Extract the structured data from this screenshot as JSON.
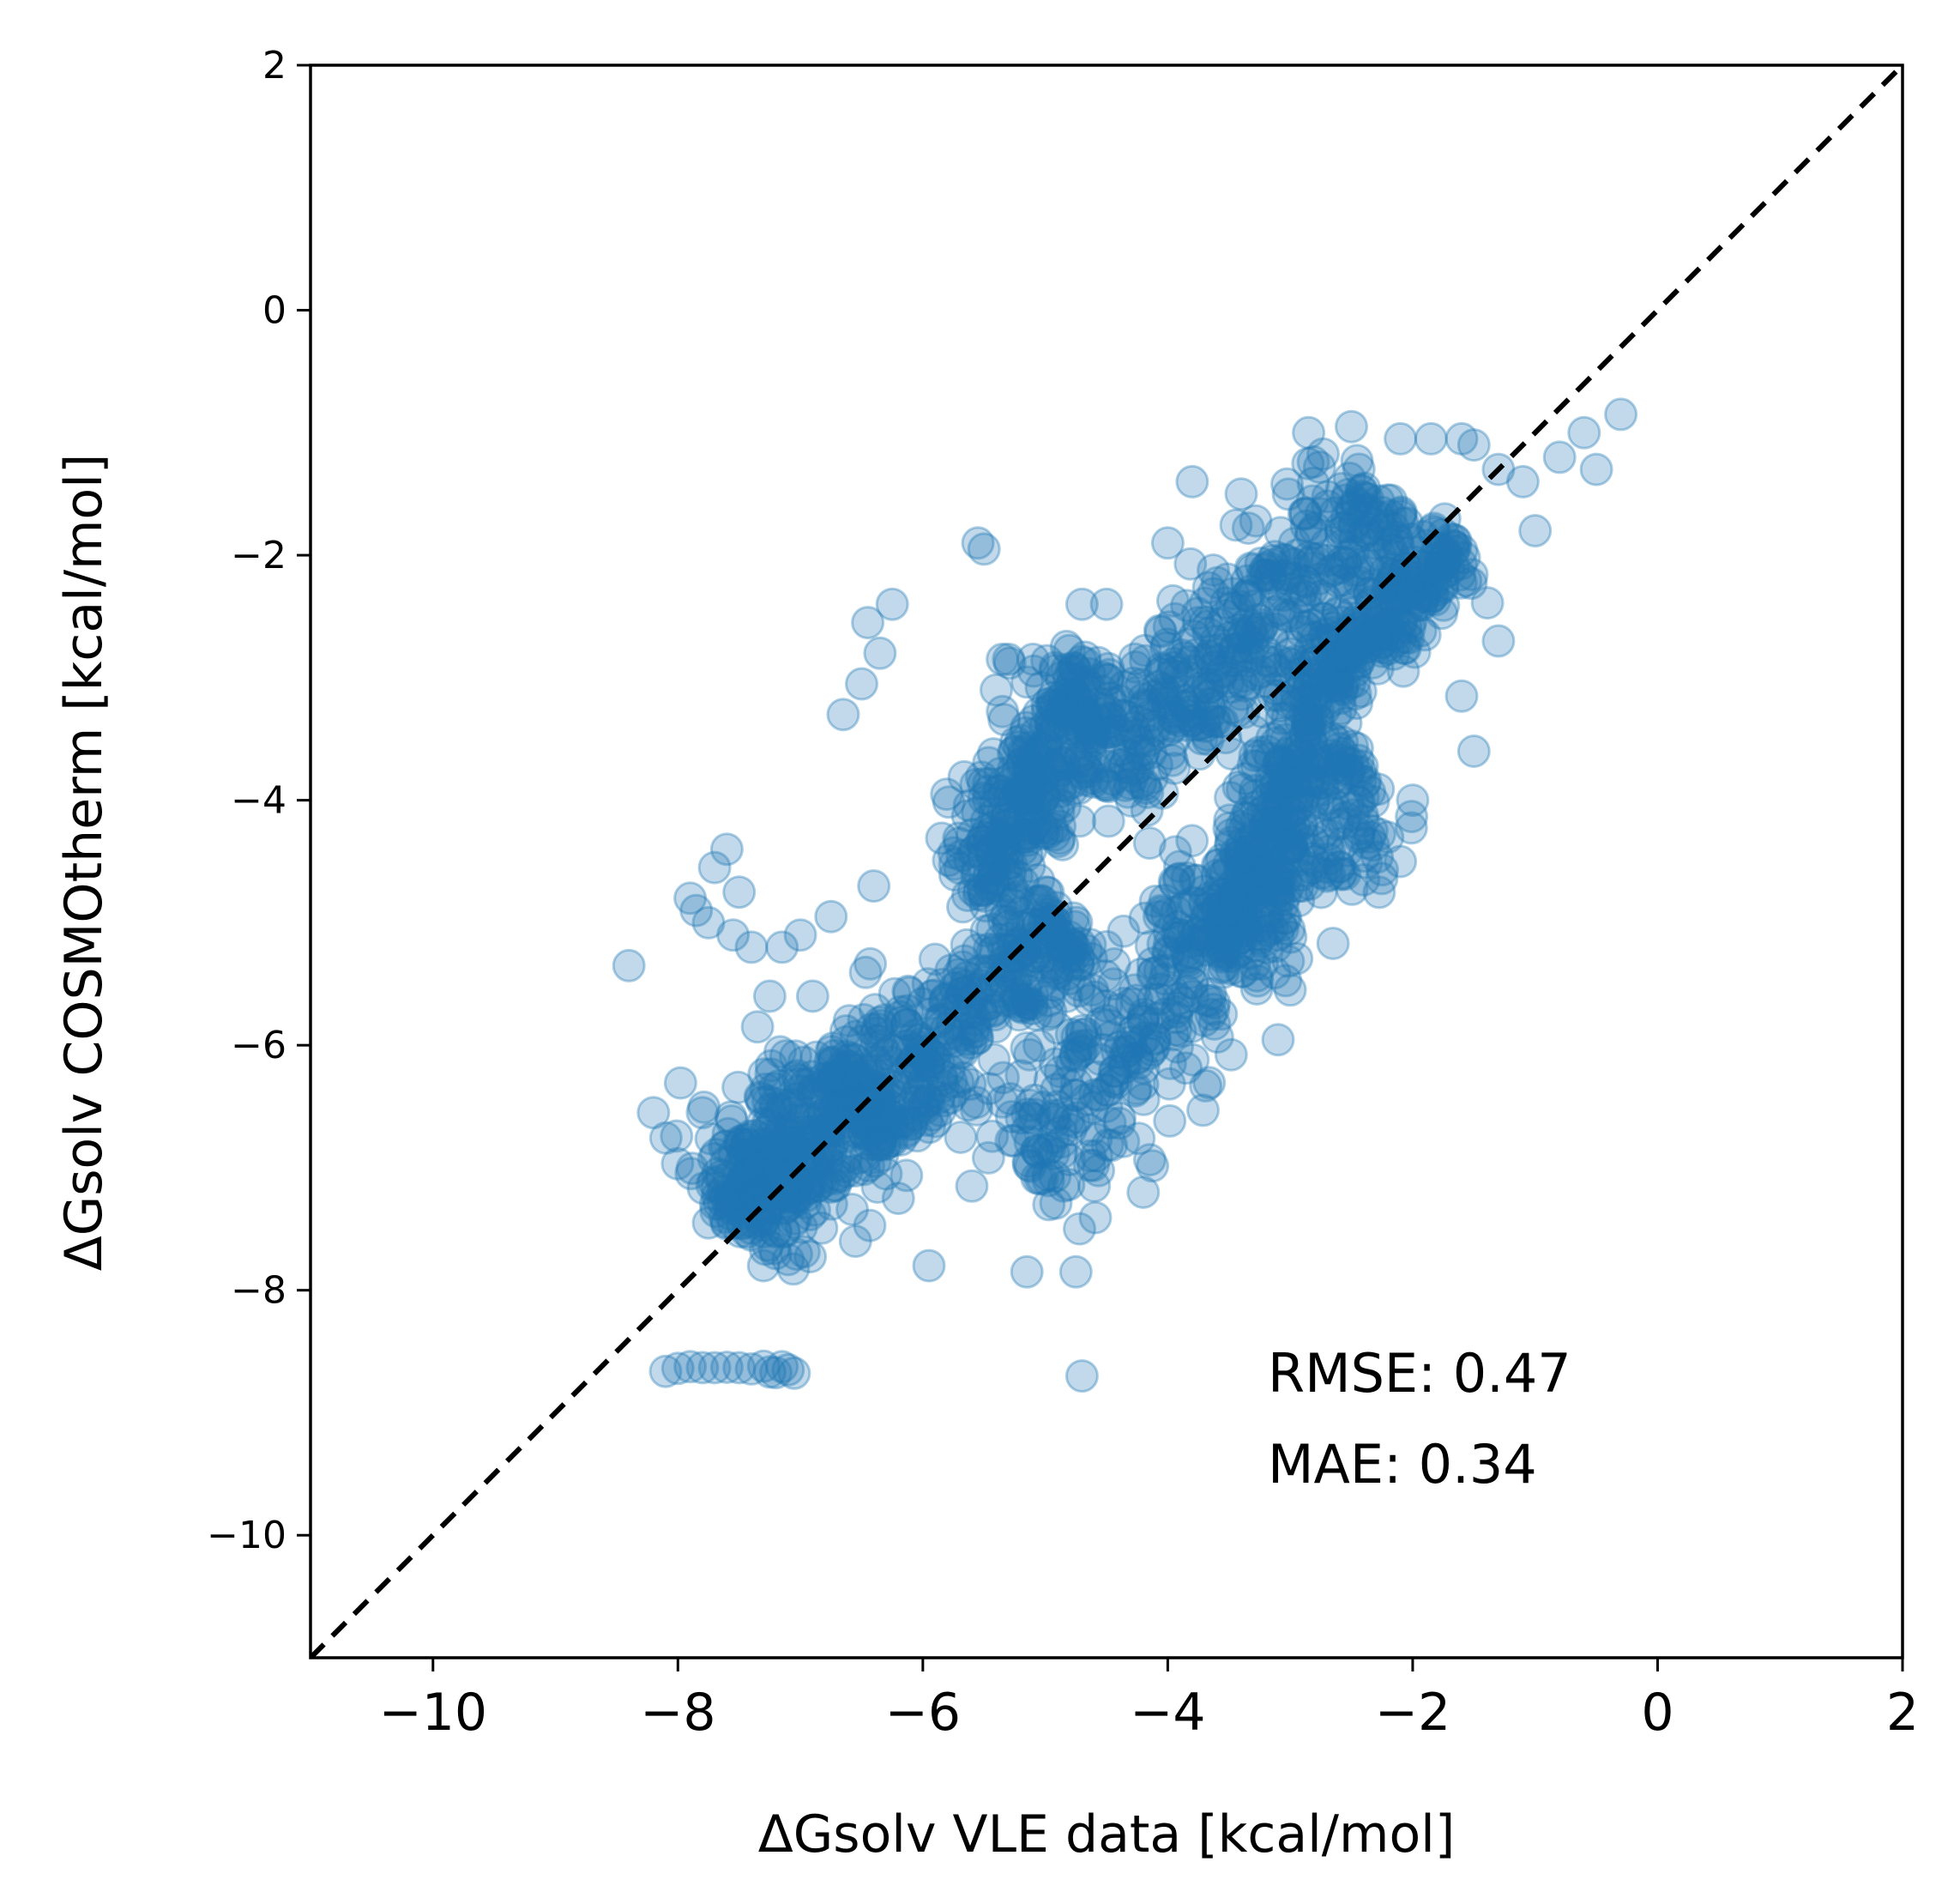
{
  "chart_data": {
    "type": "scatter",
    "title": "",
    "xlabel": "ΔGsolv VLE data [kcal/mol]",
    "ylabel": "ΔGsolv COSMOtherm [kcal/mol]",
    "xlim": [
      -11,
      2
    ],
    "ylim": [
      -11,
      2
    ],
    "x_ticks": [
      -10,
      -8,
      -6,
      -4,
      -2,
      0,
      2
    ],
    "x_tick_labels": [
      "−10",
      "−8",
      "−6",
      "−4",
      "−2",
      "0",
      "2"
    ],
    "y_ticks": [
      -10,
      -8,
      -6,
      -4,
      -2,
      0,
      2
    ],
    "y_tick_labels": [
      "−10",
      "−8",
      "−6",
      "−4",
      "−2",
      "0",
      "2"
    ],
    "grid": false,
    "marker_color": "#1f77b4",
    "marker_alpha": 0.28,
    "reference_line": {
      "from": [
        -11,
        -11
      ],
      "to": [
        2,
        2
      ],
      "style": "dashed",
      "color": "#000000"
    },
    "annotations": {
      "rmse": "RMSE: 0.47",
      "mae": "MAE: 0.34"
    },
    "series": [
      {
        "name": "points",
        "points": [
          [
            -8.4,
            -5.35
          ],
          [
            -8.2,
            -6.55
          ],
          [
            -7.9,
            -4.8
          ],
          [
            -7.85,
            -4.9
          ],
          [
            -7.75,
            -5.0
          ],
          [
            -7.7,
            -4.55
          ],
          [
            -7.6,
            -4.4
          ],
          [
            -7.55,
            -5.1
          ],
          [
            -7.5,
            -4.75
          ],
          [
            -7.4,
            -5.2
          ],
          [
            -7.8,
            -6.55
          ],
          [
            -7.75,
            -7.45
          ],
          [
            -7.5,
            -7.2
          ],
          [
            -7.3,
            -7.8
          ],
          [
            -7.2,
            -7.7
          ],
          [
            -7.1,
            -7.75
          ],
          [
            -7.35,
            -5.85
          ],
          [
            -7.25,
            -5.6
          ],
          [
            -7.15,
            -5.2
          ],
          [
            -7.0,
            -5.1
          ],
          [
            -6.9,
            -5.6
          ],
          [
            -6.75,
            -4.95
          ],
          [
            -6.65,
            -3.3
          ],
          [
            -6.6,
            -5.8
          ],
          [
            -6.5,
            -3.05
          ],
          [
            -6.45,
            -2.55
          ],
          [
            -6.35,
            -2.8
          ],
          [
            -6.25,
            -2.4
          ],
          [
            -6.4,
            -4.7
          ],
          [
            -6.55,
            -7.6
          ],
          [
            -6.3,
            -7.05
          ],
          [
            -6.2,
            -7.25
          ],
          [
            -5.95,
            -7.8
          ],
          [
            -5.6,
            -7.15
          ],
          [
            -5.15,
            -7.85
          ],
          [
            -4.85,
            -7.15
          ],
          [
            -4.75,
            -7.85
          ],
          [
            -4.6,
            -7.15
          ],
          [
            -4.2,
            -7.2
          ],
          [
            -4.7,
            -8.7
          ],
          [
            -5.55,
            -1.9
          ],
          [
            -5.5,
            -1.95
          ],
          [
            -5.35,
            -2.85
          ],
          [
            -5.4,
            -3.1
          ],
          [
            -5.3,
            -2.85
          ],
          [
            -4.7,
            -2.4
          ],
          [
            -4.5,
            -2.4
          ],
          [
            -4.0,
            -1.9
          ],
          [
            -3.8,
            -1.4
          ],
          [
            -3.4,
            -1.5
          ],
          [
            -2.85,
            -1.0
          ],
          [
            -2.5,
            -0.95
          ],
          [
            -2.1,
            -1.05
          ],
          [
            -1.85,
            -1.05
          ],
          [
            -1.6,
            -1.05
          ],
          [
            -1.5,
            -1.1
          ],
          [
            -1.3,
            -1.3
          ],
          [
            -1.1,
            -1.4
          ],
          [
            -0.8,
            -1.2
          ],
          [
            -0.6,
            -1.0
          ],
          [
            -0.3,
            -0.85
          ],
          [
            -0.5,
            -1.3
          ],
          [
            -1.0,
            -1.8
          ],
          [
            -1.3,
            -2.7
          ],
          [
            -1.6,
            -3.15
          ],
          [
            -1.5,
            -3.6
          ],
          [
            -2.0,
            -4.0
          ],
          [
            -2.1,
            -4.5
          ],
          [
            -2.4,
            -4.65
          ],
          [
            -2.6,
            -4.55
          ],
          [
            -2.35,
            -4.3
          ],
          [
            -1.9,
            -2.65
          ],
          [
            -5.1,
            -2.85
          ],
          [
            -5.0,
            -3.4
          ],
          [
            -5.25,
            -3.6
          ],
          [
            -5.7,
            -4.35
          ],
          [
            -5.5,
            -4.3
          ],
          [
            -4.9,
            -6.5
          ],
          [
            -4.5,
            -6.5
          ],
          [
            -4.2,
            -5.8
          ],
          [
            -3.4,
            -5.4
          ],
          [
            -3.1,
            -5.1
          ],
          [
            -2.9,
            -4.7
          ],
          [
            -2.8,
            -4.5
          ]
        ],
        "cluster": [
          {
            "x1": -5.2,
            "y1": -7.0,
            "x2": -2.4,
            "y2": -3.7,
            "w": 0.9
          },
          {
            "x1": -4.6,
            "y1": -3.8,
            "x2": -2.2,
            "y2": -1.5,
            "w": 0.8
          },
          {
            "x1": -6.6,
            "y1": -6.6,
            "x2": -4.8,
            "y2": -5.0,
            "w": 0.7
          },
          {
            "x1": -7.6,
            "y1": -7.4,
            "x2": -6.4,
            "y2": -6.3,
            "w": 0.8
          },
          {
            "x1": -5.6,
            "y1": -4.8,
            "x2": -4.6,
            "y2": -2.9,
            "w": 0.6
          },
          {
            "x1": -3.6,
            "y1": -5.3,
            "x2": -2.7,
            "y2": -3.0,
            "w": 0.5
          },
          {
            "x1": -2.7,
            "y1": -3.0,
            "x2": -1.6,
            "y2": -1.9,
            "w": 0.4
          }
        ],
        "horizontal_run": {
          "y": -8.65,
          "x_values": [
            -8.1,
            -8.0,
            -7.9,
            -7.8,
            -7.7,
            -7.6,
            -7.5,
            -7.4,
            -7.3,
            -7.25,
            -7.2,
            -7.15,
            -7.1,
            -7.05
          ]
        }
      }
    ]
  }
}
